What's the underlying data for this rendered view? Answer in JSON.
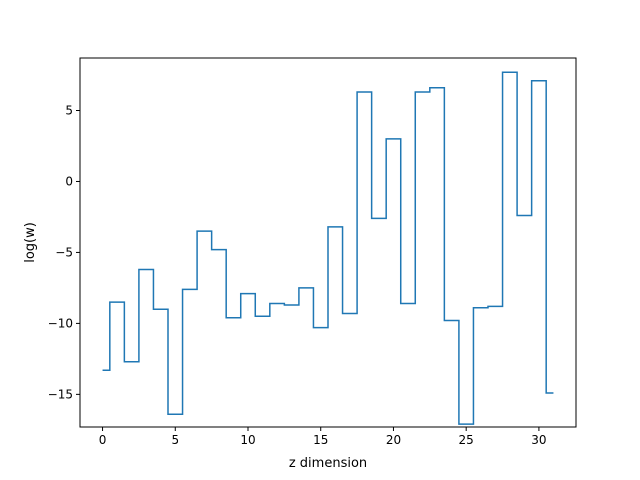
{
  "chart_data": {
    "type": "line",
    "drawstyle": "steps-mid",
    "title": "",
    "xlabel": "z dimension",
    "ylabel": "log(w)",
    "xlim": [
      -1.55,
      32.55
    ],
    "ylim": [
      -17.3,
      8.7
    ],
    "grid": false,
    "legend": "none",
    "x_ticks": [
      0,
      5,
      10,
      15,
      20,
      25,
      30
    ],
    "y_ticks": [
      -15,
      -10,
      -5,
      0,
      5
    ],
    "x_tick_labels": [
      "0",
      "5",
      "10",
      "15",
      "20",
      "25",
      "30"
    ],
    "y_tick_labels": [
      "−15",
      "−10",
      "−5",
      "0",
      "5"
    ],
    "series": [
      {
        "color": "#1f77b4",
        "x": [
          0,
          1,
          2,
          3,
          4,
          5,
          6,
          7,
          8,
          9,
          10,
          11,
          12,
          13,
          14,
          15,
          16,
          17,
          18,
          19,
          20,
          21,
          22,
          23,
          24,
          25,
          26,
          27,
          28,
          29,
          30,
          31
        ],
        "values": [
          -13.3,
          -8.5,
          -12.7,
          -6.2,
          -9.0,
          -16.4,
          -7.6,
          -3.5,
          -4.8,
          -9.6,
          -7.9,
          -9.5,
          -8.6,
          -8.7,
          -7.5,
          -10.3,
          -3.2,
          -9.3,
          6.3,
          -2.6,
          3.0,
          -8.6,
          6.3,
          6.6,
          -9.8,
          -17.1,
          -8.9,
          -8.8,
          7.7,
          -2.4,
          7.1,
          -14.9
        ]
      }
    ]
  }
}
